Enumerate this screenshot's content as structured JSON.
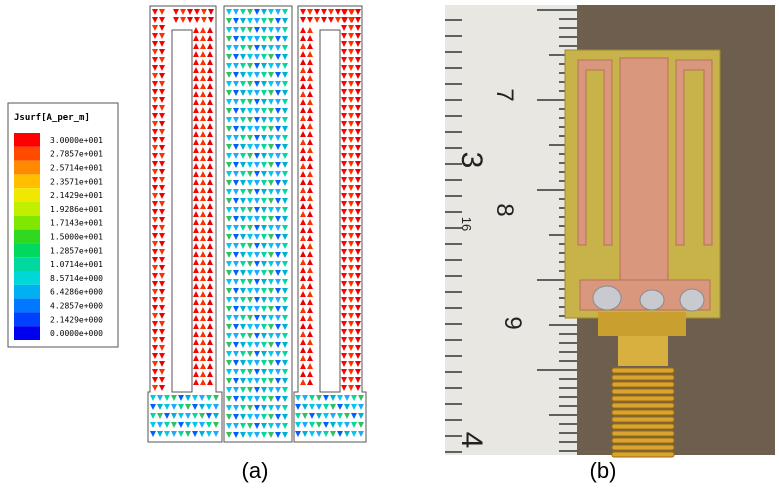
{
  "figure": {
    "legend": {
      "title": "Jsurf[A_per_m]",
      "entries": [
        {
          "label": "3.0000e+001",
          "color": "#ff0000"
        },
        {
          "label": "2.7857e+001",
          "color": "#ff4a00"
        },
        {
          "label": "2.5714e+001",
          "color": "#ff8a00"
        },
        {
          "label": "2.3571e+001",
          "color": "#ffbf00"
        },
        {
          "label": "2.1429e+001",
          "color": "#f0e800"
        },
        {
          "label": "1.9286e+001",
          "color": "#c0f000"
        },
        {
          "label": "1.7143e+001",
          "color": "#80e800"
        },
        {
          "label": "1.5000e+001",
          "color": "#30d820"
        },
        {
          "label": "1.2857e+001",
          "color": "#00d860"
        },
        {
          "label": "1.0714e+001",
          "color": "#00d8a0"
        },
        {
          "label": "8.5714e+000",
          "color": "#00d8d8"
        },
        {
          "label": "6.4286e+000",
          "color": "#00b0f0"
        },
        {
          "label": "4.2857e+000",
          "color": "#0078ff"
        },
        {
          "label": "2.1429e+000",
          "color": "#0040ff"
        },
        {
          "label": "0.0000e+000",
          "color": "#0000f0"
        }
      ]
    },
    "panels": [
      {
        "caption": "(a)"
      },
      {
        "caption": "(b)"
      }
    ],
    "photo": {
      "ruler_labels": [
        "7",
        "3",
        "8",
        "16",
        "9",
        "4"
      ]
    }
  }
}
